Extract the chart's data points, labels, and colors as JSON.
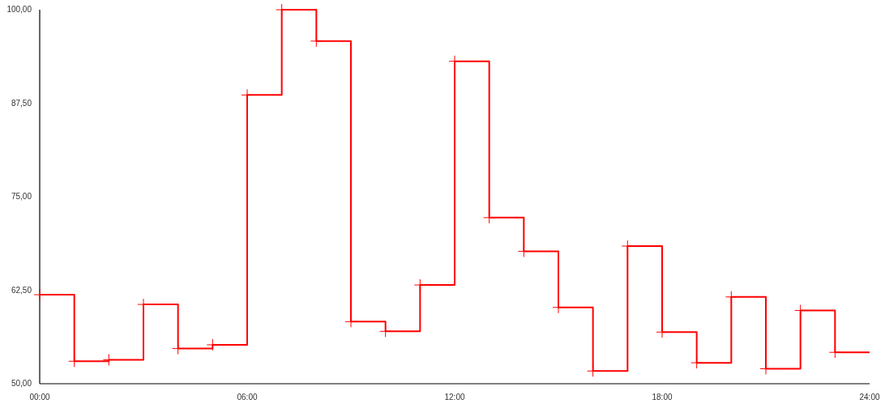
{
  "chart_data": {
    "type": "step",
    "x": [
      0,
      1,
      2,
      3,
      4,
      5,
      6,
      7,
      8,
      9,
      10,
      11,
      12,
      13,
      14,
      15,
      16,
      17,
      18,
      19,
      20,
      21,
      22,
      23,
      24
    ],
    "series": [
      {
        "color": "#ff0000",
        "values": [
          61.9,
          53.0,
          53.2,
          60.6,
          54.7,
          55.2,
          88.6,
          100,
          95.8,
          58.3,
          57.0,
          63.2,
          93.1,
          72.2,
          67.7,
          60.2,
          51.7,
          68.4,
          56.9,
          52.8,
          61.6,
          52.0,
          59.8,
          54.2,
          54.2
        ]
      }
    ],
    "xlim": [
      0,
      24
    ],
    "xticks": [
      {
        "value": 0,
        "label": "00:00"
      },
      {
        "value": 6,
        "label": "06:00"
      },
      {
        "value": 12,
        "label": "12:00"
      },
      {
        "value": 18,
        "label": "18:00"
      },
      {
        "value": 24,
        "label": "24:00"
      }
    ],
    "ylim": [
      50,
      100
    ],
    "yticks": [
      {
        "value": 50,
        "label": "50,00"
      },
      {
        "value": 62.5,
        "label": "62,50"
      },
      {
        "value": 75,
        "label": "75,00"
      },
      {
        "value": 87.5,
        "label": "87,50"
      },
      {
        "value": 100,
        "label": "100,00"
      }
    ],
    "grid": false,
    "marker": "cross",
    "line_style": "solid"
  }
}
